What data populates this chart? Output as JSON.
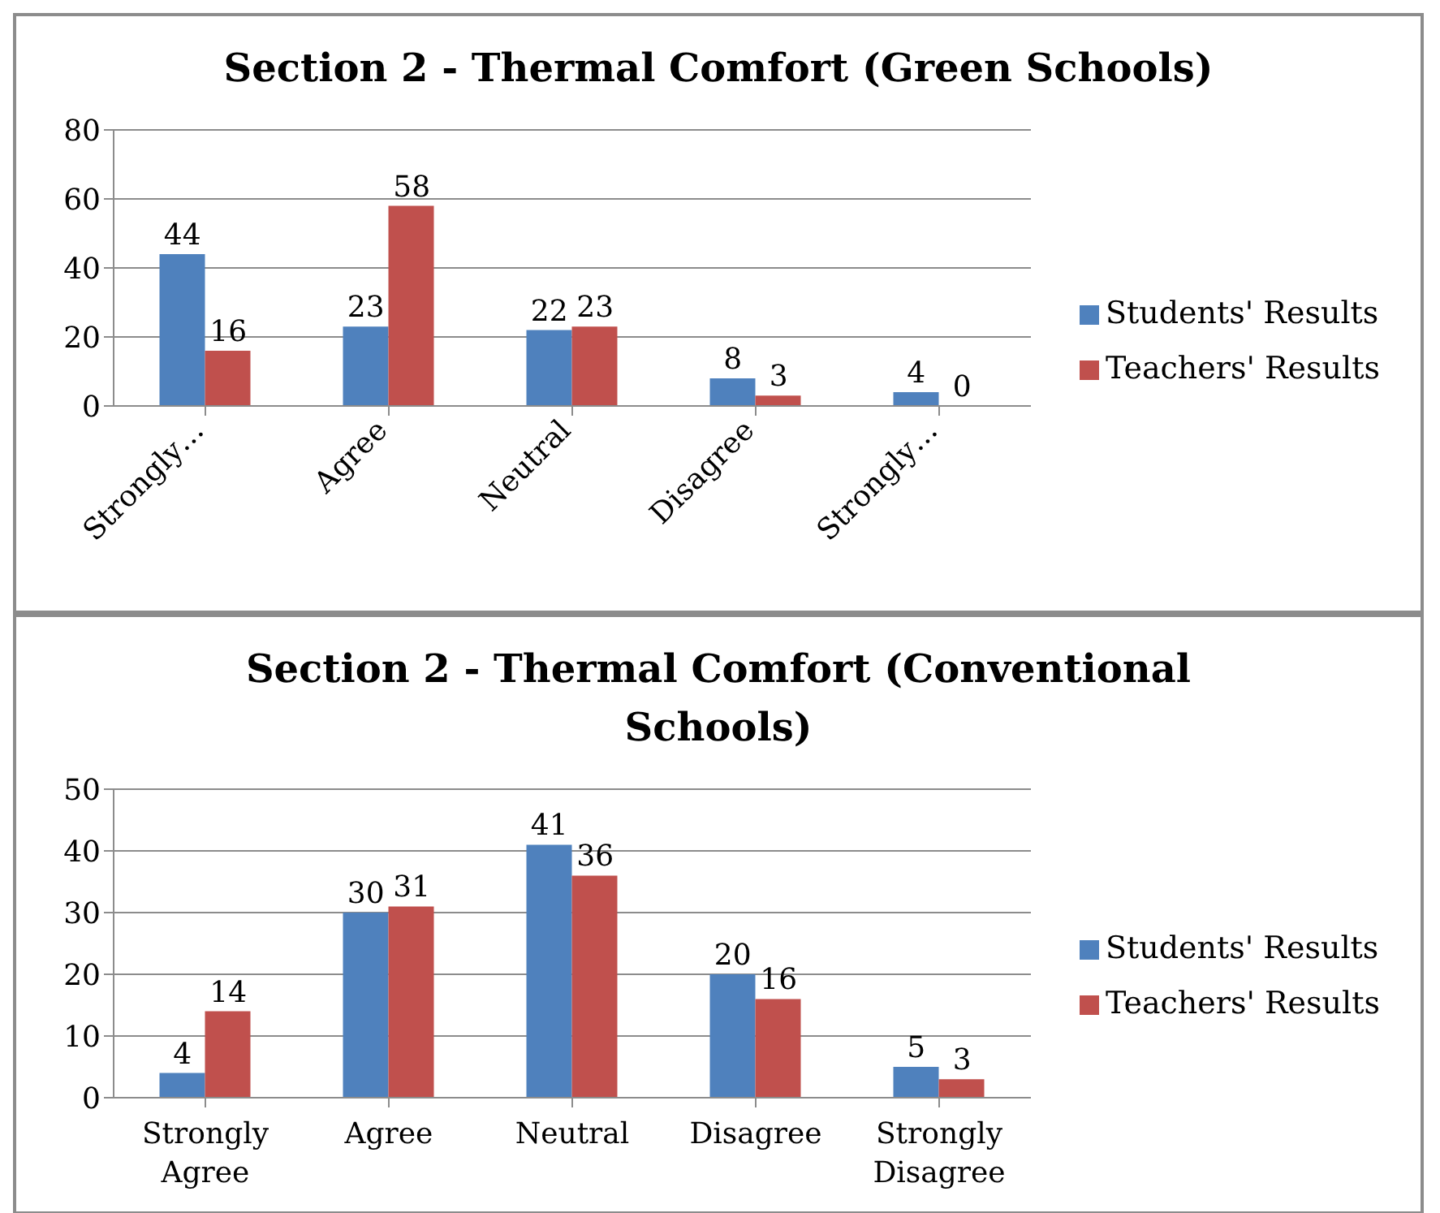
{
  "chart_data": [
    {
      "type": "bar",
      "title": "Section 2 - Thermal Comfort (Green Schools)",
      "categories": [
        "Strongly…",
        "Agree",
        "Neutral",
        "Disagree",
        "Strongly…"
      ],
      "series": [
        {
          "name": "Students' Results",
          "color": "#4f81bd",
          "values": [
            44,
            23,
            22,
            8,
            4
          ]
        },
        {
          "name": "Teachers' Results",
          "color": "#c0504d",
          "values": [
            16,
            58,
            23,
            3,
            0
          ]
        }
      ],
      "ylim": [
        0,
        80
      ],
      "yticks": [
        0,
        20,
        40,
        60,
        80
      ],
      "grid": "y",
      "legend": "right",
      "data_labels": true
    },
    {
      "type": "bar",
      "title": "Section 2 - Thermal Comfort (Conventional Schools)",
      "categories": [
        "Strongly Agree",
        "Agree",
        "Neutral",
        "Disagree",
        "Strongly Disagree"
      ],
      "series": [
        {
          "name": "Students' Results",
          "color": "#4f81bd",
          "values": [
            4,
            30,
            41,
            20,
            5
          ]
        },
        {
          "name": "Teachers' Results",
          "color": "#c0504d",
          "values": [
            14,
            31,
            36,
            16,
            3
          ]
        }
      ],
      "ylim": [
        0,
        50
      ],
      "yticks": [
        0,
        10,
        20,
        30,
        40,
        50
      ],
      "grid": "y",
      "legend": "right",
      "data_labels": true
    }
  ]
}
